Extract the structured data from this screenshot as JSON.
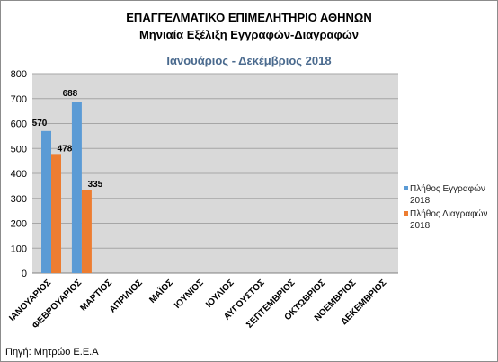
{
  "title_line1": "ΕΠΑΓΓΕΛΜΑΤΙΚΟ ΕΠΙΜΕΛΗΤΗΡΙΟ ΑΘΗΝΩΝ",
  "title_line2": "Μηνιαία Εξέλιξη Εγγραφών-Διαγραφών",
  "subtitle": "Ιανουάριος - Δεκέμβριος 2018",
  "source": "Πηγή: Μητρώο Ε.Ε.Α",
  "colors": {
    "series1": "#5b9bd5",
    "series2": "#ed7d31",
    "plot_bg": "#d9d9d9",
    "gridline": "#a6a6a6"
  },
  "legend": {
    "placement": "right",
    "items": [
      {
        "line1": "Πλήθος Εγγραφών",
        "line2": "2018"
      },
      {
        "line1": "Πλήθος Διαγραφών",
        "line2": "2018"
      }
    ]
  },
  "chart_data": {
    "type": "bar",
    "title": "ΕΠΑΓΓΕΛΜΑΤΙΚΟ ΕΠΙΜΕΛΗΤΗΡΙΟ ΑΘΗΝΩΝ Μηνιαία Εξέλιξη Εγγραφών-Διαγραφών",
    "subtitle": "Ιανουάριος - Δεκέμβριος 2018",
    "categories": [
      "ΙΑΝΟΥΑΡΙΟΣ",
      "ΦΕΒΡΟΥΑΡΙΟΣ",
      "ΜΑΡΤΙΟΣ",
      "ΑΠΡΙΛΙΟΣ",
      "ΜΑΪΟΣ",
      "ΙΟΥΝΙΟΣ",
      "ΙΟΥΛΙΟΣ",
      "ΑΥΓΟΥΣΤΟΣ",
      "ΣΕΠΤΕΜΒΡΙΟΣ",
      "ΟΚΤΩΒΡΙΟΣ",
      "ΝΟΕΜΒΡΙΟΣ",
      "ΔΕΚΕΜΒΡΙΟΣ"
    ],
    "series": [
      {
        "name": "Πλήθος Εγγραφών 2018",
        "values": [
          570,
          688,
          null,
          null,
          null,
          null,
          null,
          null,
          null,
          null,
          null,
          null
        ]
      },
      {
        "name": "Πλήθος Διαγραφών 2018",
        "values": [
          478,
          335,
          null,
          null,
          null,
          null,
          null,
          null,
          null,
          null,
          null,
          null
        ]
      }
    ],
    "ylim": [
      0,
      800
    ],
    "yticks": [
      "0",
      "100",
      "200",
      "300",
      "400",
      "500",
      "600",
      "700",
      "800"
    ],
    "grid": true,
    "data_labels": true
  }
}
